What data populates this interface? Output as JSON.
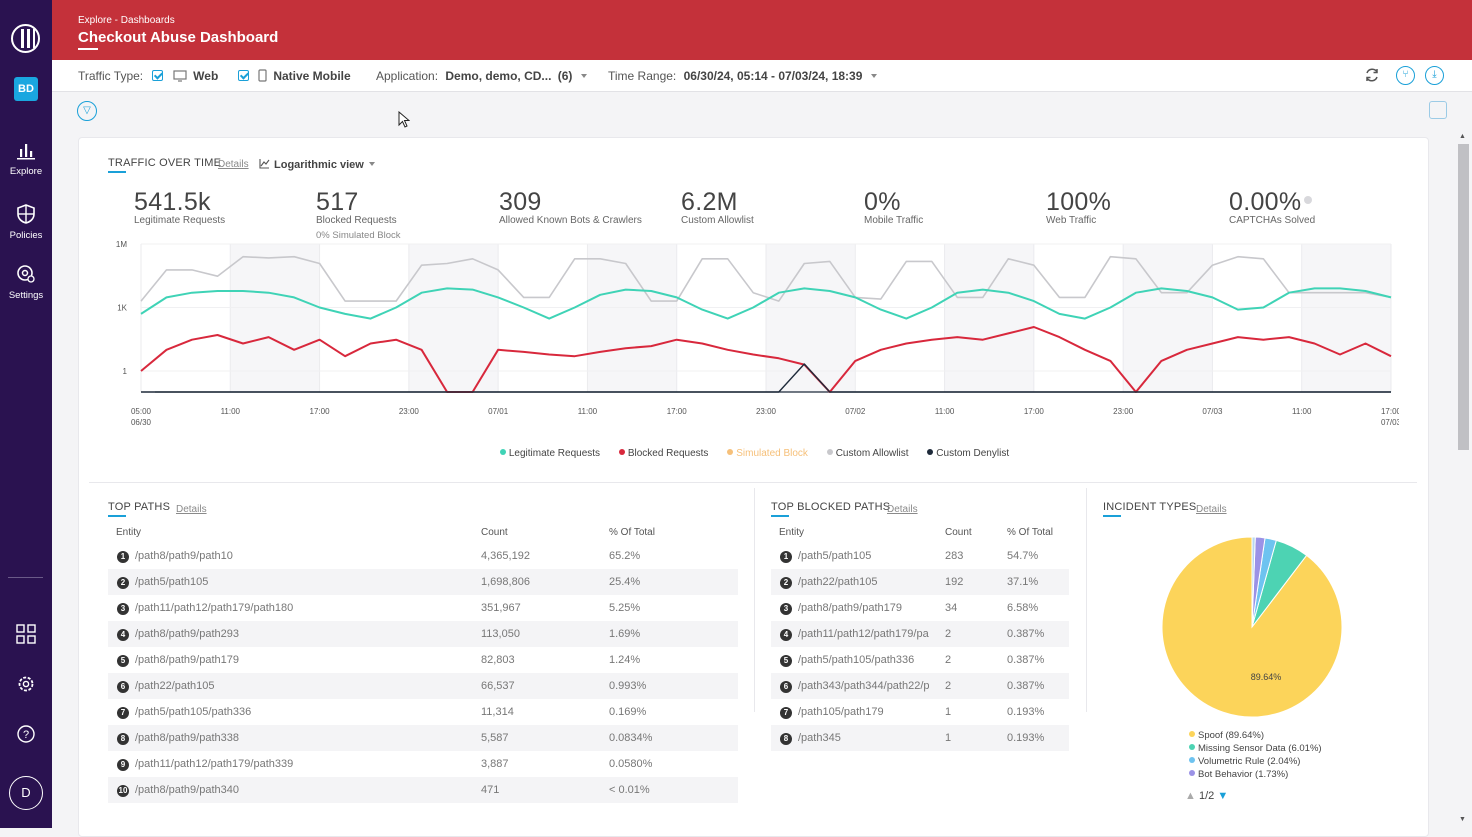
{
  "sidebar": {
    "user_initials": "BD",
    "avatar_letter": "D",
    "nav": [
      {
        "label": "Explore"
      },
      {
        "label": "Policies"
      },
      {
        "label": "Settings"
      }
    ]
  },
  "header": {
    "breadcrumb": "Explore - Dashboards",
    "title": "Checkout Abuse Dashboard"
  },
  "filters": {
    "traffic_type_label": "Traffic Type:",
    "web_label": "Web",
    "native_mobile_label": "Native Mobile",
    "application_label": "Application:",
    "application_value": "Demo, demo, CD...",
    "application_count": "(6)",
    "time_range_label": "Time Range:",
    "time_range_value": "06/30/24, 05:14 - 07/03/24, 18:39"
  },
  "traffic": {
    "title": "TRAFFIC OVER TIME",
    "details": "Details",
    "view_mode": "Logarithmic view",
    "kpis": [
      {
        "value": "541.5k",
        "label": "Legitimate Requests",
        "sub": ""
      },
      {
        "value": "517",
        "label": "Blocked Requests",
        "sub": "0% Simulated Block"
      },
      {
        "value": "309",
        "label": "Allowed Known Bots & Crawlers",
        "sub": ""
      },
      {
        "value": "6.2M",
        "label": "Custom Allowlist",
        "sub": ""
      },
      {
        "value": "0%",
        "label": "Mobile Traffic",
        "sub": ""
      },
      {
        "value": "100%",
        "label": "Web Traffic",
        "sub": ""
      },
      {
        "value": "0.00%",
        "label": "CAPTCHAs Solved",
        "sub": ""
      }
    ],
    "legend": [
      {
        "name": "Legitimate Requests",
        "color": "#3fd3b6"
      },
      {
        "name": "Blocked Requests",
        "color": "#d8283c"
      },
      {
        "name": "Simulated Block",
        "color": "#f6c07a"
      },
      {
        "name": "Custom Allowlist",
        "color": "#c8c8cc"
      },
      {
        "name": "Custom Denylist",
        "color": "#1e2a3a"
      }
    ]
  },
  "chart_data": {
    "type": "line",
    "title": "TRAFFIC OVER TIME",
    "yscale": "log",
    "y_ticks": [
      "1M",
      "1K",
      "1"
    ],
    "x_ticks": [
      "05:00\n06/30",
      "11:00",
      "17:00",
      "23:00",
      "07/01",
      "11:00",
      "17:00",
      "23:00",
      "07/02",
      "11:00",
      "17:00",
      "23:00",
      "07/03",
      "11:00",
      "17:00\n07/03"
    ],
    "series": [
      {
        "name": "Custom Allowlist",
        "color": "#c8c8cc",
        "values": [
          2000,
          60000,
          60000,
          30000,
          250000,
          220000,
          250000,
          120000,
          2000,
          2000,
          2000,
          100000,
          120000,
          200000,
          60000,
          3000,
          3000,
          200000,
          200000,
          120000,
          2000,
          2000,
          200000,
          200000,
          5000,
          2000,
          120000,
          150000,
          3000,
          2500,
          150000,
          150000,
          3000,
          3000,
          200000,
          100000,
          3000,
          3000,
          250000,
          200000,
          5000,
          5000,
          100000,
          250000,
          200000,
          5000,
          5000,
          5000,
          5000,
          3000
        ]
      },
      {
        "name": "Legitimate Requests",
        "color": "#3fd3b6",
        "values": [
          500,
          3000,
          5000,
          6000,
          6000,
          5000,
          3000,
          1000,
          500,
          300,
          1000,
          5000,
          8000,
          7000,
          3000,
          1000,
          300,
          1000,
          4000,
          7000,
          6000,
          3000,
          800,
          300,
          1000,
          5000,
          8000,
          6000,
          3000,
          800,
          300,
          1000,
          5000,
          7000,
          5000,
          2000,
          500,
          300,
          1000,
          5000,
          8000,
          6000,
          3000,
          800,
          1000,
          5000,
          8000,
          8000,
          6000,
          3000
        ]
      },
      {
        "name": "Blocked Requests",
        "color": "#d8283c",
        "values": [
          1,
          10,
          30,
          50,
          20,
          40,
          10,
          30,
          5,
          20,
          30,
          10,
          0,
          0,
          10,
          8,
          6,
          5,
          8,
          12,
          15,
          30,
          20,
          10,
          6,
          4,
          2,
          0,
          3,
          10,
          20,
          30,
          40,
          30,
          60,
          120,
          40,
          10,
          3,
          0,
          3,
          10,
          20,
          40,
          30,
          40,
          20,
          6,
          20,
          5
        ]
      },
      {
        "name": "Custom Denylist",
        "color": "#1e2a3a",
        "values": [
          0,
          0,
          0,
          0,
          0,
          0,
          0,
          0,
          0,
          0,
          0,
          0,
          0,
          0,
          0,
          0,
          0,
          0,
          0,
          0,
          0,
          0,
          0,
          0,
          0,
          0,
          8,
          0,
          0,
          0,
          0,
          0,
          0,
          0,
          0,
          0,
          0,
          0,
          0,
          0,
          0,
          0,
          0,
          0,
          0,
          0,
          0,
          0,
          0,
          0
        ]
      }
    ]
  },
  "top_paths": {
    "title": "TOP PATHS",
    "details": "Details",
    "headers": [
      "Entity",
      "Count",
      "% Of Total"
    ],
    "rows": [
      [
        "1",
        "/path8/path9/path10",
        "4,365,192",
        "65.2%"
      ],
      [
        "2",
        "/path5/path105",
        "1,698,806",
        "25.4%"
      ],
      [
        "3",
        "/path11/path12/path179/path180",
        "351,967",
        "5.25%"
      ],
      [
        "4",
        "/path8/path9/path293",
        "113,050",
        "1.69%"
      ],
      [
        "5",
        "/path8/path9/path179",
        "82,803",
        "1.24%"
      ],
      [
        "6",
        "/path22/path105",
        "66,537",
        "0.993%"
      ],
      [
        "7",
        "/path5/path105/path336",
        "11,314",
        "0.169%"
      ],
      [
        "8",
        "/path8/path9/path338",
        "5,587",
        "0.0834%"
      ],
      [
        "9",
        "/path11/path12/path179/path339",
        "3,887",
        "0.0580%"
      ],
      [
        "10",
        "/path8/path9/path340",
        "471",
        "< 0.01%"
      ]
    ]
  },
  "top_blocked_paths": {
    "title": "TOP BLOCKED PATHS",
    "details": "Details",
    "headers": [
      "Entity",
      "Count",
      "% Of Total"
    ],
    "rows": [
      [
        "1",
        "/path5/path105",
        "283",
        "54.7%"
      ],
      [
        "2",
        "/path22/path105",
        "192",
        "37.1%"
      ],
      [
        "3",
        "/path8/path9/path179",
        "34",
        "6.58%"
      ],
      [
        "4",
        "/path11/path12/path179/pa",
        "2",
        "0.387%"
      ],
      [
        "5",
        "/path5/path105/path336",
        "2",
        "0.387%"
      ],
      [
        "6",
        "/path343/path344/path22/p",
        "2",
        "0.387%"
      ],
      [
        "7",
        "/path105/path179",
        "1",
        "0.193%"
      ],
      [
        "8",
        "/path345",
        "1",
        "0.193%"
      ]
    ]
  },
  "incident_types": {
    "title": "INCIDENT TYPES",
    "details": "Details",
    "center_label": "89.64%",
    "slices": [
      {
        "label": "Spoof (89.64%)",
        "value": 89.64,
        "color": "#fcd45a"
      },
      {
        "label": "Missing Sensor Data (6.01%)",
        "value": 6.01,
        "color": "#4dd3b3"
      },
      {
        "label": "Volumetric Rule (2.04%)",
        "value": 2.04,
        "color": "#6ec3f0"
      },
      {
        "label": "Bot Behavior (1.73%)",
        "value": 1.73,
        "color": "#9b92e6"
      },
      {
        "label": "",
        "value": 0.58,
        "color": "#b8d8f0"
      }
    ],
    "pager": "1/2"
  }
}
